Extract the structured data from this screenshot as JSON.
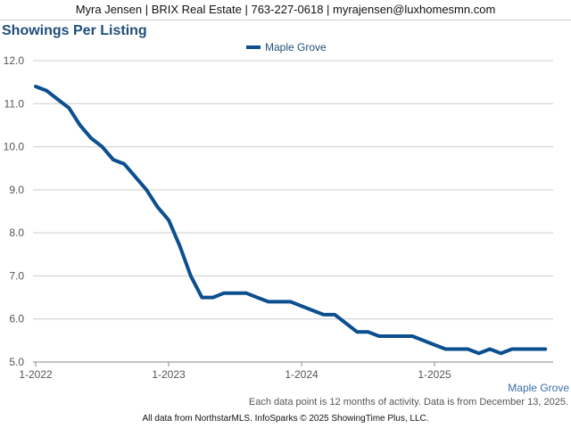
{
  "header": {
    "text": "Myra Jensen | BRIX Real Estate | 763-227-0618 | myrajensen@luxhomesmn.com"
  },
  "chart_data": {
    "type": "line",
    "title": "Showings Per Listing",
    "ylim": [
      5.0,
      12.0
    ],
    "yticks": [
      "12.0",
      "11.0",
      "10.0",
      "9.0",
      "8.0",
      "7.0",
      "6.0",
      "5.0"
    ],
    "xticks": [
      "1-2022",
      "1-2023",
      "1-2024",
      "1-2025"
    ],
    "legend": "top-center",
    "grid": "horizontal",
    "series": [
      {
        "name": "Maple Grove",
        "color": "#0b4f8f",
        "x": [
          "2022-01",
          "2022-02",
          "2022-03",
          "2022-04",
          "2022-05",
          "2022-06",
          "2022-07",
          "2022-08",
          "2022-09",
          "2022-10",
          "2022-11",
          "2022-12",
          "2023-01",
          "2023-02",
          "2023-03",
          "2023-04",
          "2023-05",
          "2023-06",
          "2023-07",
          "2023-08",
          "2023-09",
          "2023-10",
          "2023-11",
          "2023-12",
          "2024-01",
          "2024-02",
          "2024-03",
          "2024-04",
          "2024-05",
          "2024-06",
          "2024-07",
          "2024-08",
          "2024-09",
          "2024-10",
          "2024-11",
          "2024-12",
          "2025-01",
          "2025-02",
          "2025-03",
          "2025-04",
          "2025-05",
          "2025-06",
          "2025-07",
          "2025-08",
          "2025-09",
          "2025-10",
          "2025-11"
        ],
        "values": [
          11.4,
          11.3,
          11.1,
          10.9,
          10.5,
          10.2,
          10.0,
          9.7,
          9.6,
          9.3,
          9.0,
          8.6,
          8.3,
          7.7,
          7.0,
          6.5,
          6.5,
          6.6,
          6.6,
          6.6,
          6.5,
          6.4,
          6.4,
          6.4,
          6.3,
          6.2,
          6.1,
          6.1,
          5.9,
          5.7,
          5.7,
          5.6,
          5.6,
          5.6,
          5.6,
          5.5,
          5.4,
          5.3,
          5.3,
          5.3,
          5.2,
          5.3,
          5.2,
          5.3,
          5.3,
          5.3,
          5.3
        ]
      }
    ]
  },
  "series_label": "Maple Grove",
  "note": "Each data point is 12 months of activity. Data is from December 13, 2025.",
  "footer": "All data from NorthstarMLS. InfoSparks © 2025 ShowingTime Plus, LLC."
}
